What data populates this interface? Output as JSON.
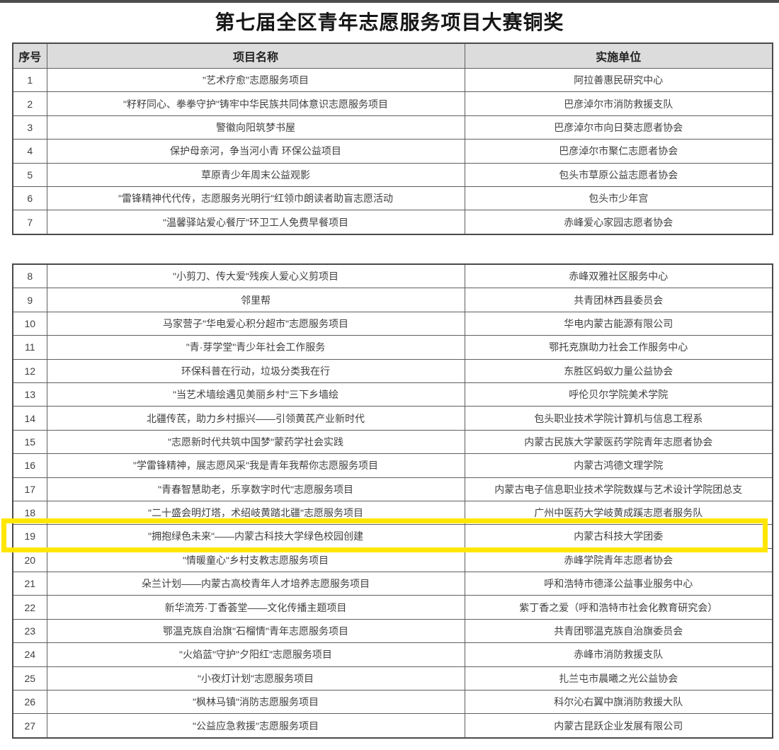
{
  "page_title": "第七届全区青年志愿服务项目大赛铜奖",
  "table": {
    "headers": {
      "no": "序号",
      "project": "项目名称",
      "org": "实施单位"
    },
    "header_bg": "#dcdcdc",
    "section_break_after_no": "7",
    "highlighted_no": "19",
    "highlight_color": "#ffe600",
    "rows": [
      {
        "no": "1",
        "project": "\"艺术疗愈\"志愿服务项目",
        "org": "阿拉善惠民研究中心"
      },
      {
        "no": "2",
        "project": "\"籽籽同心、拳拳守护\"铸牢中华民族共同体意识志愿服务项目",
        "org": "巴彦淖尔市消防救援支队"
      },
      {
        "no": "3",
        "project": "警徽向阳筑梦书屋",
        "org": "巴彦淖尔市向日葵志愿者协会"
      },
      {
        "no": "4",
        "project": "保护母亲河，争当河小青 环保公益项目",
        "org": "巴彦淖尔市聚仁志愿者协会"
      },
      {
        "no": "5",
        "project": "草原青少年周末公益观影",
        "org": "包头市草原公益志愿者协会"
      },
      {
        "no": "6",
        "project": "\"雷锋精神代代传，志愿服务光明行\"红领巾朗读者助盲志愿活动",
        "org": "包头市少年宫"
      },
      {
        "no": "7",
        "project": "\"温馨驿站爱心餐厅\"环卫工人免费早餐项目",
        "org": "赤峰爱心家园志愿者协会"
      },
      {
        "no": "8",
        "project": "\"小剪刀、传大爱\"残疾人爱心义剪项目",
        "org": "赤峰双雅社区服务中心"
      },
      {
        "no": "9",
        "project": "邻里帮",
        "org": "共青团林西县委员会"
      },
      {
        "no": "10",
        "project": "马家营子\"华电爱心积分超市\"志愿服务项目",
        "org": "华电内蒙古能源有限公司"
      },
      {
        "no": "11",
        "project": "\"青·芽学堂\"青少年社会工作服务",
        "org": "鄂托克旗助力社会工作服务中心"
      },
      {
        "no": "12",
        "project": "环保科普在行动，垃圾分类我在行",
        "org": "东胜区蚂蚁力量公益协会"
      },
      {
        "no": "13",
        "project": "\"当艺术墙绘遇见美丽乡村\"三下乡墙绘",
        "org": "呼伦贝尔学院美术学院"
      },
      {
        "no": "14",
        "project": "北疆传芪，助力乡村振兴——引领黄芪产业新时代",
        "org": "包头职业技术学院计算机与信息工程系"
      },
      {
        "no": "15",
        "project": "\"志愿新时代共筑中国梦\"蒙药学社会实践",
        "org": "内蒙古民族大学蒙医药学院青年志愿者协会"
      },
      {
        "no": "16",
        "project": "\"学雷锋精神，展志愿风采\"我是青年我帮你志愿服务项目",
        "org": "内蒙古鸿德文理学院"
      },
      {
        "no": "17",
        "project": "\"青春智慧助老，乐享数字时代\"志愿服务项目",
        "org": "内蒙古电子信息职业技术学院数媒与艺术设计学院团总支"
      },
      {
        "no": "18",
        "project": "\"二十盛会明灯塔，术绍岐黄踏北疆\"志愿服务项目",
        "org": "广州中医药大学岐黄成蹊志愿者服务队"
      },
      {
        "no": "19",
        "project": "\"拥抱绿色未来\"——内蒙古科技大学绿色校园创建",
        "org": "内蒙古科技大学团委"
      },
      {
        "no": "20",
        "project": "\"情暖童心\"乡村支教志愿服务项目",
        "org": "赤峰学院青年志愿者协会"
      },
      {
        "no": "21",
        "project": "朵兰计划——内蒙古高校青年人才培养志愿服务项目",
        "org": "呼和浩特市德泽公益事业服务中心"
      },
      {
        "no": "22",
        "project": "新华流芳·丁香荟堂——文化传播主题项目",
        "org": "紫丁香之爱（呼和浩特市社会化教育研究会）"
      },
      {
        "no": "23",
        "project": "鄂温克族自治旗\"石榴情\"青年志愿服务项目",
        "org": "共青团鄂温克族自治旗委员会"
      },
      {
        "no": "24",
        "project": "\"火焰蓝\"守护\"夕阳红\"志愿服务项目",
        "org": "赤峰市消防救援支队"
      },
      {
        "no": "25",
        "project": "\"小夜灯计划\"志愿服务项目",
        "org": "扎兰屯市晨曦之光公益协会"
      },
      {
        "no": "26",
        "project": "\"枫林马镇\"消防志愿服务项目",
        "org": "科尔沁右翼中旗消防救援大队"
      },
      {
        "no": "27",
        "project": "\"公益应急救援\"志愿服务项目",
        "org": "内蒙古昆跃企业发展有限公司"
      }
    ]
  }
}
